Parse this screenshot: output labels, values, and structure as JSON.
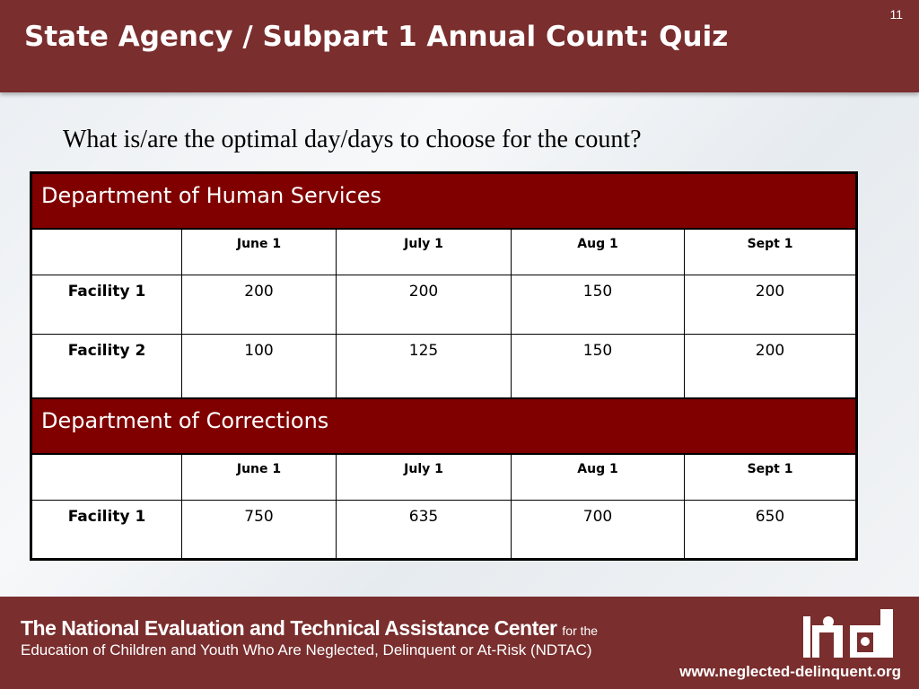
{
  "slide": {
    "page_number": "11",
    "title": "State Agency / Subpart 1 Annual Count: Quiz",
    "question": "What is/are the optimal day/days to choose for the count?"
  },
  "table": {
    "sections": [
      {
        "department": "Department of Human Services",
        "dates": [
          "June 1",
          "July 1",
          "Aug 1",
          "Sept 1"
        ],
        "rows": [
          {
            "label": "Facility 1",
            "values": [
              "200",
              "200",
              "150",
              "200"
            ]
          },
          {
            "label": "Facility 2",
            "values": [
              "100",
              "125",
              "150",
              "200"
            ]
          }
        ]
      },
      {
        "department": "Department of Corrections",
        "dates": [
          "June 1",
          "July 1",
          "Aug 1",
          "Sept 1"
        ],
        "rows": [
          {
            "label": "Facility 1",
            "values": [
              "750",
              "635",
              "700",
              "650"
            ]
          }
        ]
      }
    ]
  },
  "footer": {
    "org_name": "The National Evaluation and Technical Assistance Center",
    "org_suffix": "for the",
    "org_subtitle": "Education of Children and Youth Who Are Neglected, Delinquent or At-Risk (NDTAC)",
    "website": "www.neglected-delinquent.org",
    "logo_icon": "ndtac-logo-icon"
  },
  "colors": {
    "header_bg": "#7a2e2e",
    "table_section_bg": "#800000"
  }
}
